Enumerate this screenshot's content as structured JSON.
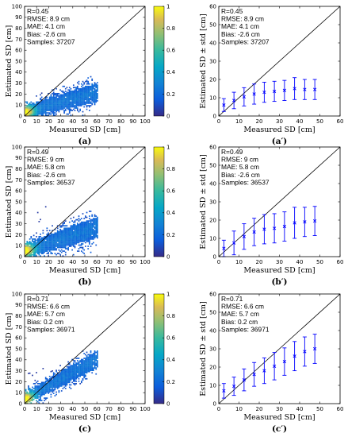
{
  "chart_data": [
    {
      "type": "heatmap",
      "panel_label": "(a)",
      "xlabel": "Measured SD [cm]",
      "ylabel": "Estimated SD [cm]",
      "xlim": [
        0,
        100
      ],
      "ylim": [
        0,
        100
      ],
      "xticks": [
        0,
        10,
        20,
        30,
        40,
        50,
        60,
        70,
        80,
        90,
        100
      ],
      "yticks": [
        0,
        10,
        20,
        30,
        40,
        50,
        60,
        70,
        80,
        90,
        100
      ],
      "stats": [
        "R=0.45",
        "RMSE: 8.9 cm",
        "MAE: 4.1 cm",
        "Bias: -2.6 cm",
        "Samples: 37207"
      ],
      "colorbar": {
        "range": [
          0,
          1
        ],
        "ticks": [
          0,
          0.2,
          0.4,
          0.6,
          0.8,
          1
        ],
        "tick_labels": [
          "0",
          "0.2",
          "0.4",
          "0.6",
          "0.8",
          "1"
        ]
      },
      "one_to_one_line": true,
      "density_extent": {
        "x_max": 60,
        "slope": 0.3,
        "offset": 3,
        "spread": 10
      }
    },
    {
      "type": "scatter",
      "panel_label": "(a′)",
      "xlabel": "Measured SD [cm]",
      "ylabel": "Estimated SD ± std [cm]",
      "xlim": [
        0,
        60
      ],
      "ylim": [
        0,
        60
      ],
      "xticks": [
        0,
        10,
        20,
        30,
        40,
        50,
        60
      ],
      "yticks": [
        0,
        10,
        20,
        30,
        40,
        50,
        60
      ],
      "stats": [
        "R=0.45",
        "RMSE: 8.9 cm",
        "MAE: 4.1 cm",
        "Bias: -2.6 cm",
        "Samples: 37207"
      ],
      "one_to_one_line": true,
      "x": [
        2.5,
        7.5,
        12.5,
        17.5,
        22.5,
        27.5,
        32.5,
        37.5,
        42.5,
        47.5
      ],
      "y": [
        6,
        8.5,
        10.5,
        12,
        13,
        13.5,
        14,
        15,
        14.5,
        14.5
      ],
      "std": [
        3.5,
        4.5,
        5,
        5.5,
        5.5,
        5.5,
        5.5,
        6,
        5.5,
        5.5
      ]
    },
    {
      "type": "heatmap",
      "panel_label": "(b)",
      "xlabel": "Measured SD [cm]",
      "ylabel": "Estimated SD [cm]",
      "xlim": [
        0,
        100
      ],
      "ylim": [
        0,
        100
      ],
      "xticks": [
        0,
        10,
        20,
        30,
        40,
        50,
        60,
        70,
        80,
        90,
        100
      ],
      "yticks": [
        0,
        10,
        20,
        30,
        40,
        50,
        60,
        70,
        80,
        90,
        100
      ],
      "stats": [
        "R=0.49",
        "RMSE: 9 cm",
        "MAE: 5.8 cm",
        "Bias: -2.6 cm",
        "Samples: 36537"
      ],
      "colorbar": {
        "range": [
          0,
          1
        ],
        "ticks": [
          0,
          0.2,
          0.4,
          0.6,
          0.8,
          1
        ],
        "tick_labels": [
          "0",
          "0.2",
          "0.4",
          "0.6",
          "0.8",
          "1"
        ]
      },
      "one_to_one_line": true,
      "density_extent": {
        "x_max": 60,
        "slope": 0.35,
        "offset": 5,
        "spread": 11
      }
    },
    {
      "type": "scatter",
      "panel_label": "(b′)",
      "xlabel": "Measured SD [cm]",
      "ylabel": "Estimated SD ± std [cm]",
      "xlim": [
        0,
        60
      ],
      "ylim": [
        0,
        60
      ],
      "xticks": [
        0,
        10,
        20,
        30,
        40,
        50,
        60
      ],
      "yticks": [
        0,
        10,
        20,
        30,
        40,
        50,
        60
      ],
      "stats": [
        "R=0.49",
        "RMSE: 9 cm",
        "MAE: 5.8 cm",
        "Bias: -2.6 cm",
        "Samples: 36537"
      ],
      "one_to_one_line": true,
      "x": [
        2.5,
        7.5,
        12.5,
        17.5,
        22.5,
        27.5,
        32.5,
        37.5,
        42.5,
        47.5
      ],
      "y": [
        4.5,
        7.5,
        11,
        13.5,
        15,
        15.5,
        16.5,
        18.5,
        19,
        19.5
      ],
      "std": [
        4.5,
        6.5,
        7,
        7.5,
        8,
        8,
        8,
        8.5,
        8,
        8
      ]
    },
    {
      "type": "heatmap",
      "panel_label": "(c)",
      "xlabel": "Measured SD [cm]",
      "ylabel": "Estimated SD [cm]",
      "xlim": [
        0,
        100
      ],
      "ylim": [
        0,
        100
      ],
      "xticks": [
        0,
        10,
        20,
        30,
        40,
        50,
        60,
        70,
        80,
        90,
        100
      ],
      "yticks": [
        0,
        10,
        20,
        30,
        40,
        50,
        60,
        70,
        80,
        90,
        100
      ],
      "stats": [
        "R=0.71",
        "RMSE: 6.6 cm",
        "MAE: 5.7 cm",
        "Bias: 0.2 cm",
        "Samples: 36971"
      ],
      "colorbar": {
        "range": [
          0,
          1
        ],
        "ticks": [
          0,
          0.2,
          0.4,
          0.6,
          0.8,
          1
        ],
        "tick_labels": [
          "0",
          "0.2",
          "0.4",
          "0.6",
          "0.8",
          "1"
        ]
      },
      "one_to_one_line": true,
      "density_extent": {
        "x_max": 60,
        "slope": 0.6,
        "offset": 4,
        "spread": 9
      }
    },
    {
      "type": "scatter",
      "panel_label": "(c′)",
      "xlabel": "Measured SD [cm]",
      "ylabel": "Estimated SD ± std [cm]",
      "xlim": [
        0,
        60
      ],
      "ylim": [
        0,
        60
      ],
      "xticks": [
        0,
        10,
        20,
        30,
        40,
        50,
        60
      ],
      "yticks": [
        0,
        10,
        20,
        30,
        40,
        50,
        60
      ],
      "stats": [
        "R=0.71",
        "RMSE: 6.6 cm",
        "MAE: 5.7 cm",
        "Bias: 0.2 cm",
        "Samples: 36971"
      ],
      "one_to_one_line": true,
      "x": [
        2.5,
        7.5,
        12.5,
        17.5,
        22.5,
        27.5,
        32.5,
        37.5,
        42.5,
        47.5
      ],
      "y": [
        7,
        9.5,
        13,
        16,
        18,
        20.5,
        23,
        26,
        28.5,
        30
      ],
      "std": [
        4,
        5,
        6,
        6.5,
        7,
        7.5,
        7.5,
        8,
        8,
        8
      ]
    }
  ]
}
